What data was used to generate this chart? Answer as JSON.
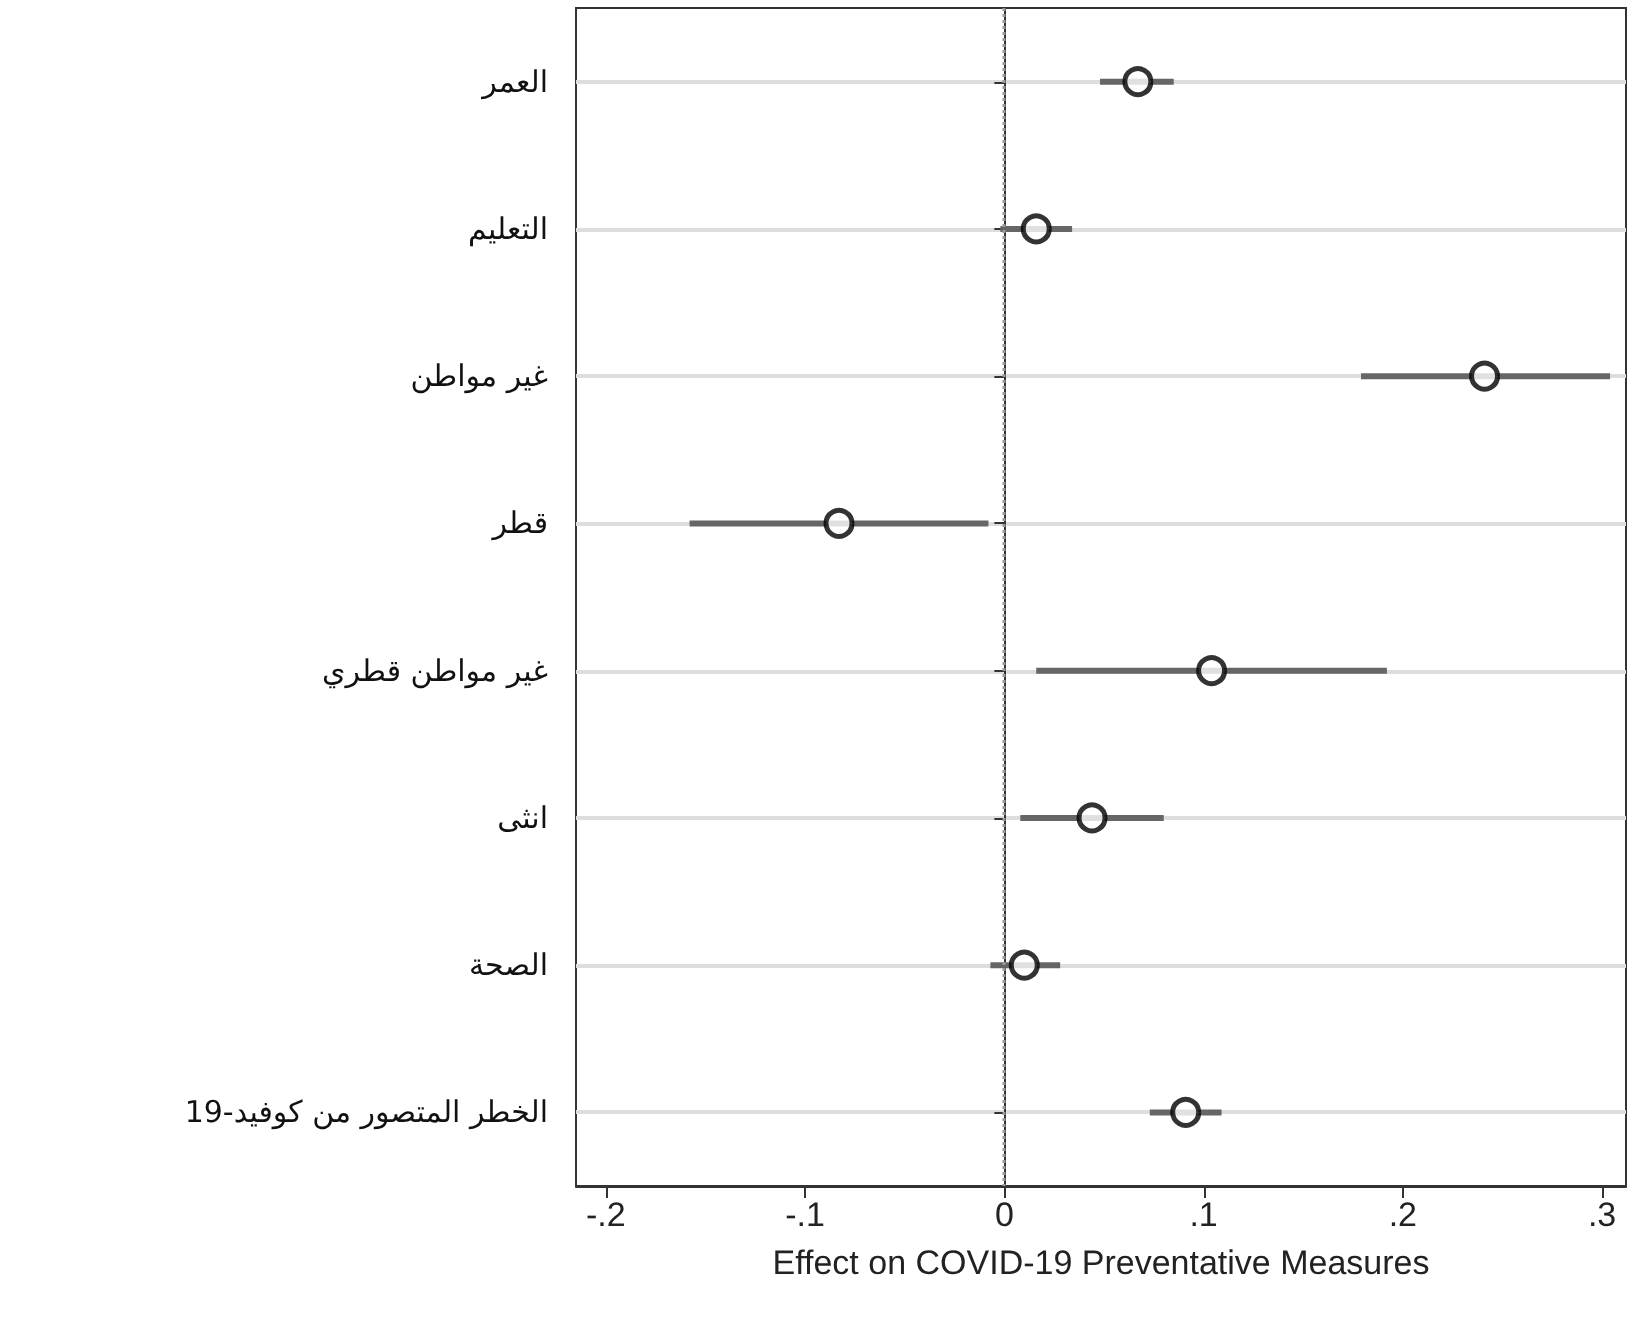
{
  "chart_data": {
    "type": "scatter",
    "orientation": "horizontal",
    "xlabel": "Effect on COVID-19 Preventative Measures",
    "categories": [
      "العمر",
      "التعليم",
      "غير مواطن",
      "قطر",
      "غير مواطن قطري",
      "انثى",
      "الصحة",
      "الخطر المتصور من كوفيد-19"
    ],
    "values": [
      0.067,
      0.016,
      0.241,
      -0.083,
      0.104,
      0.044,
      0.01,
      0.091
    ],
    "errors": [
      [
        0.048,
        0.085
      ],
      [
        -0.002,
        0.034
      ],
      [
        0.179,
        0.304
      ],
      [
        -0.158,
        -0.008
      ],
      [
        0.016,
        0.192
      ],
      [
        0.008,
        0.08
      ],
      [
        -0.007,
        0.028
      ],
      [
        0.073,
        0.109
      ]
    ],
    "color": "#000000",
    "marker": "circle",
    "grid": "y",
    "xlim": [
      -0.215,
      0.312
    ],
    "xticks": [
      {
        "value": -0.2,
        "label": "-.2"
      },
      {
        "value": -0.1,
        "label": "-.1"
      },
      0,
      {
        "value": 0.1,
        "label": ".1"
      },
      {
        "value": 0.2,
        "label": ".2"
      },
      {
        "value": 0.3,
        "label": ".3"
      }
    ],
    "ref_lines": [
      {
        "axis": "x",
        "value": 0,
        "line_style": "dotted",
        "color": "#999999"
      }
    ]
  }
}
